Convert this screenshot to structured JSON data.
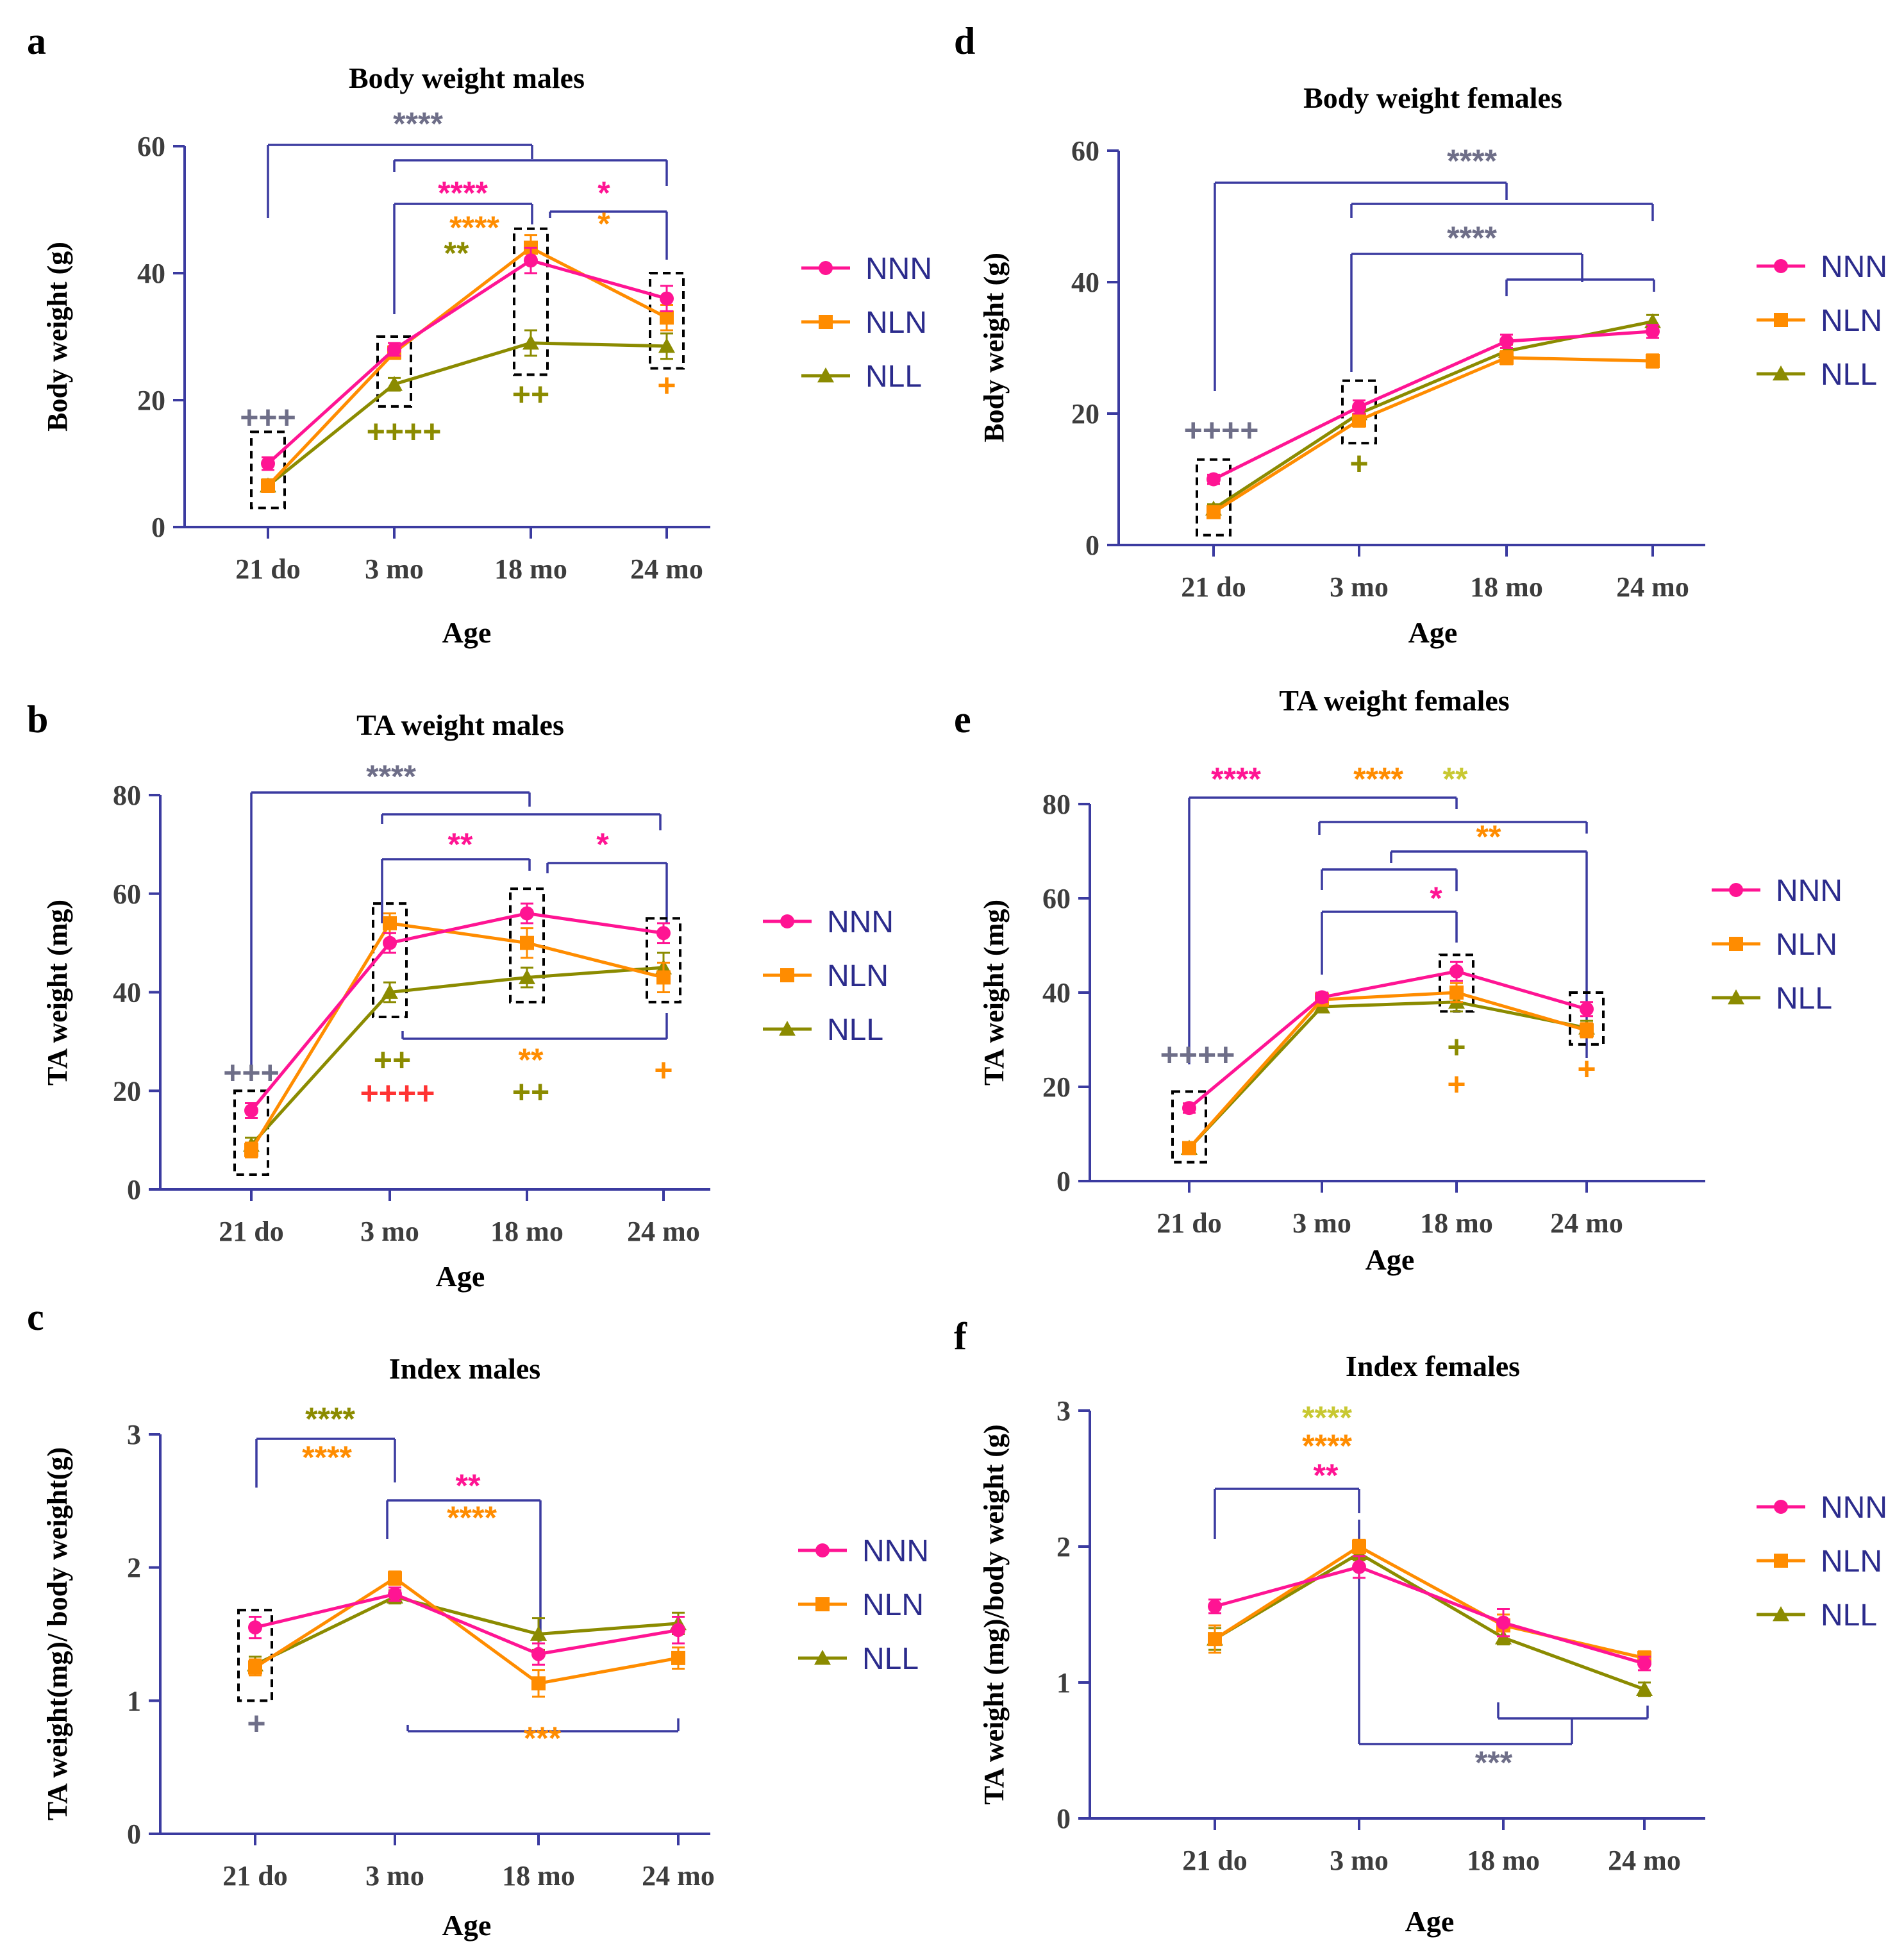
{
  "colors": {
    "NNN": "#ff1493",
    "NLN": "#ff8c00",
    "NLL": "#8b8b00",
    "axis": "#3b3ba0",
    "gray": "#6e6e88",
    "red": "#ff3333",
    "yellow": "#c8c832",
    "text": "#000000",
    "legend_text": "#2b2b8c"
  },
  "legend": [
    "NNN",
    "NLN",
    "NLL"
  ],
  "chart_data": [
    {
      "panel": "a",
      "title": "Body weight males",
      "type": "line",
      "xlabel": "Age",
      "ylabel": "Body weight (g)",
      "categories": [
        "21 do",
        "3 mo",
        "18 mo",
        "24 mo"
      ],
      "ylim": [
        0,
        60
      ],
      "yticks": [
        0,
        20,
        40,
        60
      ],
      "series": [
        {
          "name": "NNN",
          "values": [
            10,
            28,
            42,
            36
          ],
          "err": [
            1,
            1,
            2,
            2
          ]
        },
        {
          "name": "NLN",
          "values": [
            6.5,
            27.5,
            44,
            33
          ],
          "err": [
            1,
            1,
            2,
            2
          ]
        },
        {
          "name": "NLL",
          "values": [
            6.5,
            22.5,
            29,
            28.5
          ],
          "err": [
            1,
            1,
            2,
            2
          ]
        }
      ],
      "annotations": [
        {
          "text": "****",
          "color": "gray"
        },
        {
          "text": "****",
          "color": "NNN"
        },
        {
          "text": "****",
          "color": "NLN"
        },
        {
          "text": "**",
          "color": "NLL"
        },
        {
          "text": "*",
          "color": "NNN"
        },
        {
          "text": "*",
          "color": "NLN"
        },
        {
          "text": "+++",
          "color": "gray"
        },
        {
          "text": "++++",
          "color": "NLL"
        },
        {
          "text": "++",
          "color": "NLL"
        },
        {
          "text": "+",
          "color": "NLN"
        }
      ]
    },
    {
      "panel": "b",
      "title": "TA weight males",
      "type": "line",
      "xlabel": "Age",
      "ylabel": "TA weight (mg)",
      "categories": [
        "21 do",
        "3 mo",
        "18 mo",
        "24 mo"
      ],
      "ylim": [
        0,
        80
      ],
      "yticks": [
        0,
        20,
        40,
        60,
        80
      ],
      "series": [
        {
          "name": "NNN",
          "values": [
            16,
            50,
            56,
            52
          ],
          "err": [
            1.5,
            2,
            2,
            2
          ]
        },
        {
          "name": "NLN",
          "values": [
            8,
            54,
            50,
            43
          ],
          "err": [
            1.5,
            2,
            3,
            3
          ]
        },
        {
          "name": "NLL",
          "values": [
            9,
            40,
            43,
            45
          ],
          "err": [
            1.5,
            2,
            2,
            3
          ]
        }
      ],
      "annotations": [
        {
          "text": "****",
          "color": "gray"
        },
        {
          "text": "**",
          "color": "NNN"
        },
        {
          "text": "*",
          "color": "NNN"
        },
        {
          "text": "+++",
          "color": "gray"
        },
        {
          "text": "++",
          "color": "NLL"
        },
        {
          "text": "++++",
          "color": "red"
        },
        {
          "text": "**",
          "color": "NLN"
        },
        {
          "text": "++",
          "color": "NLL"
        },
        {
          "text": "+",
          "color": "NLN"
        }
      ]
    },
    {
      "panel": "c",
      "title": "Index males",
      "type": "line",
      "xlabel": "Age",
      "ylabel": "TA weight(mg)/ body weight(g)",
      "categories": [
        "21 do",
        "3 mo",
        "18 mo",
        "24 mo"
      ],
      "ylim": [
        0,
        3
      ],
      "yticks": [
        0,
        1,
        2,
        3
      ],
      "series": [
        {
          "name": "NNN",
          "values": [
            1.55,
            1.8,
            1.35,
            1.53
          ],
          "err": [
            0.08,
            0.05,
            0.08,
            0.1
          ]
        },
        {
          "name": "NLN",
          "values": [
            1.25,
            1.92,
            1.13,
            1.32
          ],
          "err": [
            0.06,
            0.05,
            0.1,
            0.08
          ]
        },
        {
          "name": "NLL",
          "values": [
            1.27,
            1.78,
            1.5,
            1.58
          ],
          "err": [
            0.06,
            0.05,
            0.12,
            0.08
          ]
        }
      ],
      "annotations": [
        {
          "text": "****",
          "color": "NLL"
        },
        {
          "text": "****",
          "color": "NLN"
        },
        {
          "text": "**",
          "color": "NNN"
        },
        {
          "text": "****",
          "color": "NLN"
        },
        {
          "text": "***",
          "color": "NLN"
        },
        {
          "text": "+",
          "color": "gray"
        }
      ]
    },
    {
      "panel": "d",
      "title": "Body weight females",
      "type": "line",
      "xlabel": "Age",
      "ylabel": "Body weight (g)",
      "categories": [
        "21 do",
        "3 mo",
        "18 mo",
        "24 mo"
      ],
      "ylim": [
        0,
        60
      ],
      "yticks": [
        0,
        20,
        40,
        60
      ],
      "series": [
        {
          "name": "NNN",
          "values": [
            10,
            21,
            31,
            32.5
          ],
          "err": [
            0.7,
            1,
            1,
            1
          ]
        },
        {
          "name": "NLN",
          "values": [
            5,
            19,
            28.5,
            28
          ],
          "err": [
            0.7,
            1,
            1,
            1
          ]
        },
        {
          "name": "NLL",
          "values": [
            5.5,
            20,
            29.5,
            34
          ],
          "err": [
            0.7,
            1,
            1,
            1
          ]
        }
      ],
      "annotations": [
        {
          "text": "****",
          "color": "gray"
        },
        {
          "text": "****",
          "color": "gray"
        },
        {
          "text": "++++",
          "color": "gray"
        },
        {
          "text": "+",
          "color": "NLL"
        }
      ]
    },
    {
      "panel": "e",
      "title": "TA weight females",
      "type": "line",
      "xlabel": "Age",
      "ylabel": "TA weight (mg)",
      "categories": [
        "21 do",
        "3 mo",
        "18 mo",
        "24 mo"
      ],
      "ylim": [
        0,
        80
      ],
      "yticks": [
        0,
        20,
        40,
        60,
        80
      ],
      "series": [
        {
          "name": "NNN",
          "values": [
            15.5,
            39,
            44.5,
            36.5
          ],
          "err": [
            1,
            1,
            2,
            1.5
          ]
        },
        {
          "name": "NLN",
          "values": [
            7,
            38.5,
            40,
            32
          ],
          "err": [
            1,
            1,
            2,
            1.5
          ]
        },
        {
          "name": "NLL",
          "values": [
            7,
            37,
            38,
            32.5
          ],
          "err": [
            1,
            1,
            2,
            1.5
          ]
        }
      ],
      "annotations": [
        {
          "text": "****",
          "color": "NNN"
        },
        {
          "text": "****",
          "color": "NLN"
        },
        {
          "text": "**",
          "color": "yellow"
        },
        {
          "text": "**",
          "color": "NLN"
        },
        {
          "text": "*",
          "color": "NNN"
        },
        {
          "text": "++++",
          "color": "gray"
        },
        {
          "text": "+",
          "color": "NLL"
        },
        {
          "text": "+",
          "color": "NLN"
        },
        {
          "text": "+",
          "color": "NLN"
        }
      ]
    },
    {
      "panel": "f",
      "title": "Index females",
      "type": "line",
      "xlabel": "Age",
      "ylabel": "TA weight (mg)/body weight (g)",
      "categories": [
        "21 do",
        "3 mo",
        "18 mo",
        "24 mo"
      ],
      "ylim": [
        0,
        3
      ],
      "yticks": [
        0,
        1,
        2,
        3
      ],
      "series": [
        {
          "name": "NNN",
          "values": [
            1.56,
            1.85,
            1.44,
            1.14
          ],
          "err": [
            0.05,
            0.08,
            0.1,
            0.05
          ]
        },
        {
          "name": "NLN",
          "values": [
            1.32,
            2.0,
            1.42,
            1.18
          ],
          "err": [
            0.1,
            0.05,
            0.08,
            0.05
          ]
        },
        {
          "name": "NLL",
          "values": [
            1.32,
            1.95,
            1.33,
            0.95
          ],
          "err": [
            0.08,
            0.05,
            0.05,
            0.05
          ]
        }
      ],
      "annotations": [
        {
          "text": "****",
          "color": "yellow"
        },
        {
          "text": "****",
          "color": "NLN"
        },
        {
          "text": "**",
          "color": "NNN"
        },
        {
          "text": "***",
          "color": "gray"
        }
      ]
    }
  ]
}
